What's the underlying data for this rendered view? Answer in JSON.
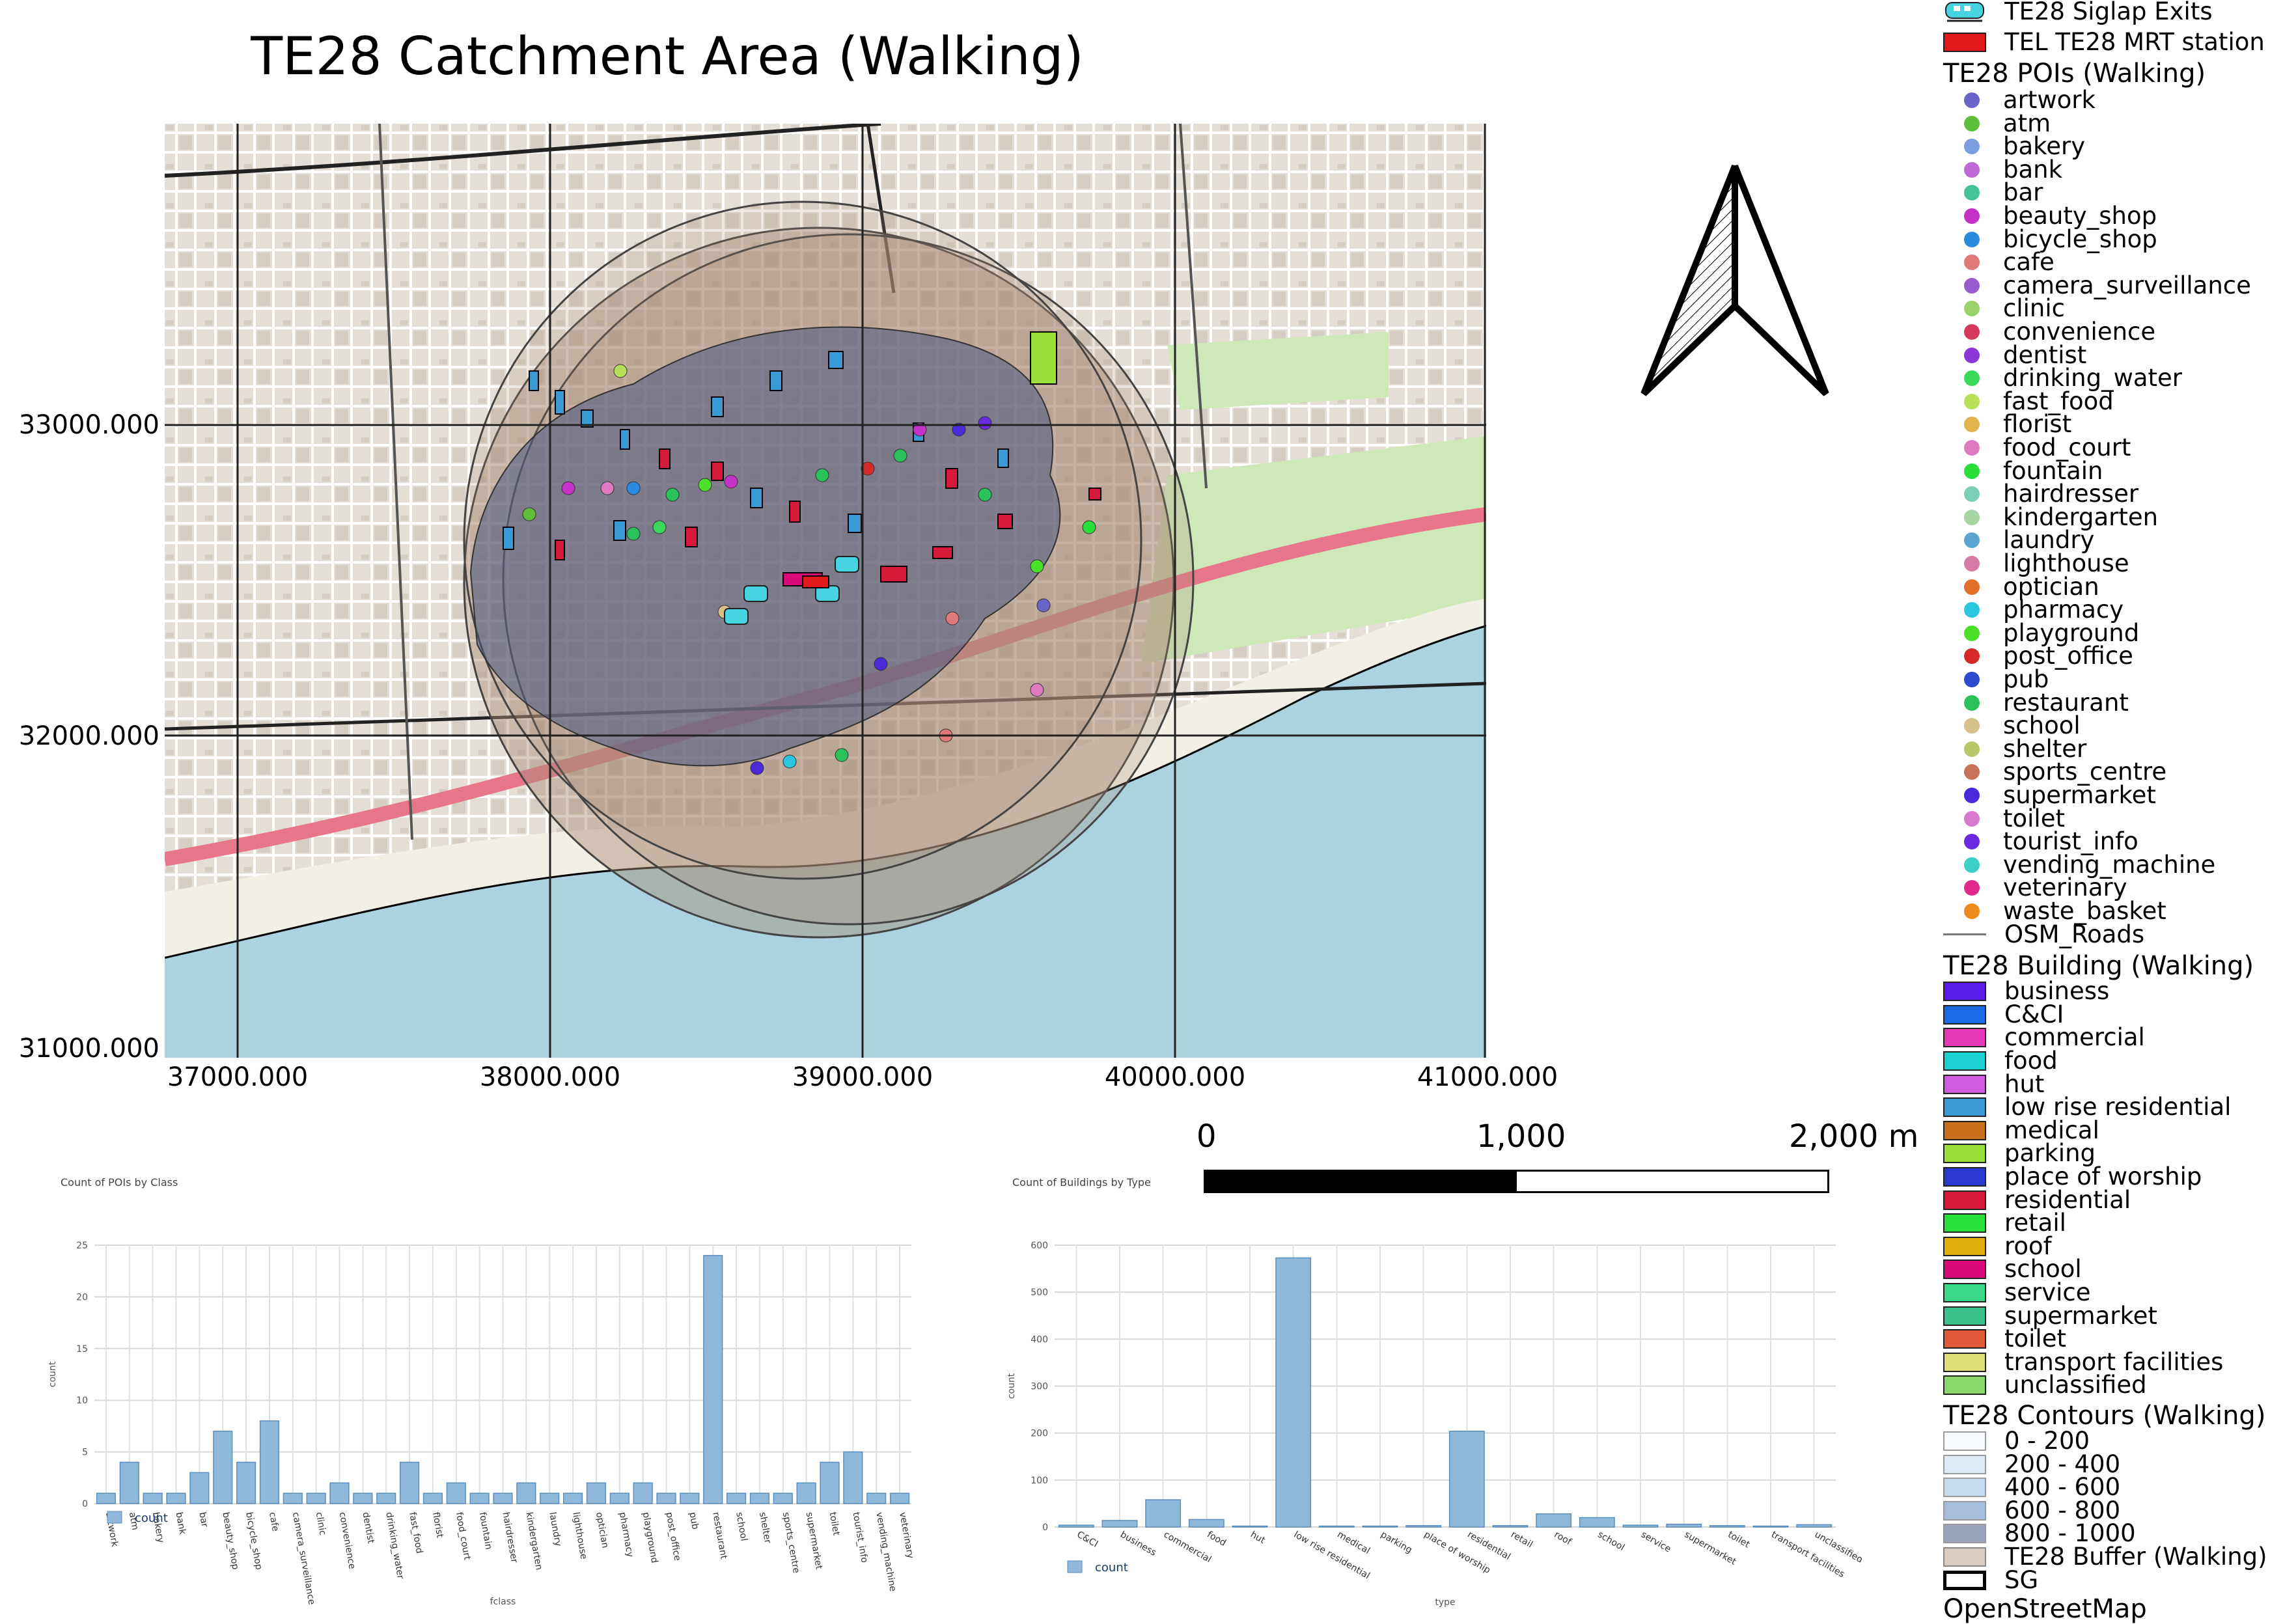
{
  "title": "TE28 Catchment Area (Walking)",
  "map": {
    "y_ticks": [
      "33000.000",
      "32000.000",
      "31000.000"
    ],
    "x_ticks": [
      "37000.000",
      "38000.000",
      "39000.000",
      "40000.000",
      "41000.000"
    ],
    "colors": {
      "sea": "#aad3df",
      "land": "#e8e3dc",
      "buffer": "#a88c78",
      "contour": "#5a6680",
      "green": "#cde9b6"
    }
  },
  "scale_bar": {
    "labels": [
      "0",
      "1,000",
      "2,000 m"
    ]
  },
  "legend": {
    "top_items": [
      {
        "label": "TE28 Siglap Exits",
        "symbol": "train-icon",
        "color": "#45d4e0"
      },
      {
        "label": "TEL TE28 MRT station",
        "symbol": "box",
        "color": "#e31a1c"
      }
    ],
    "poi_title": "TE28 POIs (Walking)",
    "pois": [
      {
        "label": "artwork",
        "color": "#6a64c8"
      },
      {
        "label": "atm",
        "color": "#5fbf3a"
      },
      {
        "label": "bakery",
        "color": "#7a9ee0"
      },
      {
        "label": "bank",
        "color": "#c06ad8"
      },
      {
        "label": "bar",
        "color": "#45c49a"
      },
      {
        "label": "beauty_shop",
        "color": "#c632c8"
      },
      {
        "label": "bicycle_shop",
        "color": "#2a8ae0"
      },
      {
        "label": "cafe",
        "color": "#e07a7a"
      },
      {
        "label": "camera_surveillance",
        "color": "#9a5ad0"
      },
      {
        "label": "clinic",
        "color": "#9ad26a"
      },
      {
        "label": "convenience",
        "color": "#d63a5a"
      },
      {
        "label": "dentist",
        "color": "#8a36d8"
      },
      {
        "label": "drinking_water",
        "color": "#3ad85a"
      },
      {
        "label": "fast_food",
        "color": "#b6e05a"
      },
      {
        "label": "florist",
        "color": "#e0b44a"
      },
      {
        "label": "food_court",
        "color": "#e07ac0"
      },
      {
        "label": "fountain",
        "color": "#2ade3a"
      },
      {
        "label": "hairdresser",
        "color": "#7ad0b6"
      },
      {
        "label": "kindergarten",
        "color": "#a6d6a6"
      },
      {
        "label": "laundry",
        "color": "#5aa6d0"
      },
      {
        "label": "lighthouse",
        "color": "#d87aa6"
      },
      {
        "label": "optician",
        "color": "#e0702a"
      },
      {
        "label": "pharmacy",
        "color": "#2ac6e0"
      },
      {
        "label": "playground",
        "color": "#4ae02a"
      },
      {
        "label": "post_office",
        "color": "#d62a2a"
      },
      {
        "label": "pub",
        "color": "#2a4ad0"
      },
      {
        "label": "restaurant",
        "color": "#2ac05a"
      },
      {
        "label": "school",
        "color": "#d6c08a"
      },
      {
        "label": "shelter",
        "color": "#b6c86a"
      },
      {
        "label": "sports_centre",
        "color": "#c8725a"
      },
      {
        "label": "supermarket",
        "color": "#4a2ad8"
      },
      {
        "label": "toilet",
        "color": "#d67ad0"
      },
      {
        "label": "tourist_info",
        "color": "#6a2ae0"
      },
      {
        "label": "vending_machine",
        "color": "#3ad0c8"
      },
      {
        "label": "veterinary",
        "color": "#e02a8a"
      },
      {
        "label": "waste_basket",
        "color": "#f08a1a"
      }
    ],
    "roads_label": "OSM_Roads",
    "building_title": "TE28 Building (Walking)",
    "buildings": [
      {
        "label": "business",
        "color": "#5a1ae8"
      },
      {
        "label": "C&CI",
        "color": "#1a6ae8"
      },
      {
        "label": "commercial",
        "color": "#e83ab6"
      },
      {
        "label": "food",
        "color": "#1ad0d0"
      },
      {
        "label": "hut",
        "color": "#d05ae0"
      },
      {
        "label": "low rise residential",
        "color": "#3a9ad6"
      },
      {
        "label": "medical",
        "color": "#c8701a"
      },
      {
        "label": "parking",
        "color": "#9ae03a"
      },
      {
        "label": "place of worship",
        "color": "#2a3ad0"
      },
      {
        "label": "residential",
        "color": "#d81a3a"
      },
      {
        "label": "retail",
        "color": "#2ae03a"
      },
      {
        "label": "roof",
        "color": "#e0b00a"
      },
      {
        "label": "school",
        "color": "#d80a7a"
      },
      {
        "label": "service",
        "color": "#3ad88a"
      },
      {
        "label": "supermarket",
        "color": "#3ac08a"
      },
      {
        "label": "toilet",
        "color": "#e05a3a"
      },
      {
        "label": "transport facilities",
        "color": "#e0e07a"
      },
      {
        "label": "unclassified",
        "color": "#8ad86a"
      }
    ],
    "contour_title": "TE28 Contours (Walking)",
    "contours": [
      {
        "label": "0 - 200",
        "color": "#f7fbff"
      },
      {
        "label": "200 - 400",
        "color": "#deebf7"
      },
      {
        "label": "400 - 600",
        "color": "#c6dbef"
      },
      {
        "label": "600 - 800",
        "color": "#a6bddb"
      },
      {
        "label": "800 - 1000",
        "color": "#9aa4bc"
      }
    ],
    "buffer_label": "TE28 Buffer (Walking)",
    "buffer_color": "#d9cbbf",
    "sg_label": "SG",
    "osm_label": "OpenStreetMap"
  },
  "chart_data": [
    {
      "type": "bar",
      "title": "Count of POIs by Class",
      "xlabel": "fclass",
      "ylabel": "count",
      "legend": "count",
      "ylim": [
        0,
        25
      ],
      "yticks": [
        0,
        5,
        10,
        15,
        20,
        25
      ],
      "categories": [
        "artwork",
        "atm",
        "bakery",
        "bank",
        "bar",
        "beauty_shop",
        "bicycle_shop",
        "cafe",
        "camera_surveillance",
        "clinic",
        "convenience",
        "dentist",
        "drinking_water",
        "fast_food",
        "florist",
        "food_court",
        "fountain",
        "hairdresser",
        "kindergarten",
        "laundry",
        "lighthouse",
        "optician",
        "pharmacy",
        "playground",
        "post_office",
        "pub",
        "restaurant",
        "school",
        "shelter",
        "sports_centre",
        "supermarket",
        "toilet",
        "tourist_info",
        "vending_machine",
        "veterinary"
      ],
      "values": [
        1,
        4,
        1,
        1,
        3,
        7,
        4,
        8,
        1,
        1,
        2,
        1,
        1,
        4,
        1,
        2,
        1,
        1,
        2,
        1,
        1,
        2,
        1,
        2,
        1,
        1,
        24,
        1,
        1,
        1,
        2,
        4,
        5,
        1,
        1
      ]
    },
    {
      "type": "bar",
      "title": "Count of Buildings by Type",
      "xlabel": "type",
      "ylabel": "count",
      "legend": "count",
      "ylim": [
        0,
        600
      ],
      "yticks": [
        0,
        100,
        200,
        300,
        400,
        500,
        600
      ],
      "categories": [
        "C&CI",
        "business",
        "commercial",
        "food",
        "hut",
        "low rise residential",
        "medical",
        "parking",
        "place of worship",
        "residential",
        "retail",
        "roof",
        "school",
        "service",
        "supermarket",
        "toilet",
        "transport facilities",
        "unclassified"
      ],
      "values": [
        4,
        14,
        58,
        16,
        2,
        573,
        2,
        2,
        3,
        204,
        3,
        28,
        20,
        4,
        6,
        3,
        2,
        5
      ]
    }
  ]
}
